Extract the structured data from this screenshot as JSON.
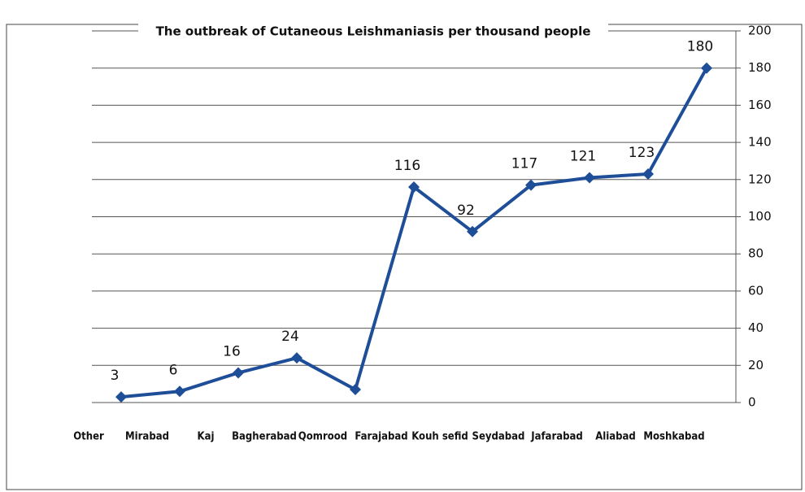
{
  "chart_data": {
    "type": "line",
    "title": "The outbreak of Cutaneous Leishmaniasis per thousand people",
    "categories": [
      "Other",
      "Mirabad",
      "Kaj",
      "Bagherabad",
      "Qomrood",
      "Farajabad",
      "Kouh sefid",
      "Seydabad",
      "Jafarabad",
      "Aliabad",
      "Moshkabad"
    ],
    "series": [
      {
        "name": "Cutaneous Leishmaniasis",
        "color": "#1f4e99",
        "values": [
          3,
          6,
          16,
          24,
          7,
          116,
          92,
          117,
          121,
          123,
          180
        ],
        "value_labels": [
          "3",
          "6",
          "16",
          "24",
          null,
          "116",
          "92",
          "117",
          "121",
          "123",
          "180"
        ]
      }
    ],
    "ylim": [
      0,
      200
    ],
    "yticks": [
      0,
      20,
      40,
      60,
      80,
      100,
      120,
      140,
      160,
      180,
      200
    ],
    "grid": true
  }
}
